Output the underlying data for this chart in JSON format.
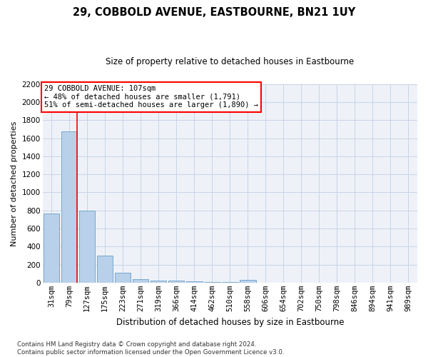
{
  "title": "29, COBBOLD AVENUE, EASTBOURNE, BN21 1UY",
  "subtitle": "Size of property relative to detached houses in Eastbourne",
  "xlabel": "Distribution of detached houses by size in Eastbourne",
  "ylabel": "Number of detached properties",
  "categories": [
    "31sqm",
    "79sqm",
    "127sqm",
    "175sqm",
    "223sqm",
    "271sqm",
    "319sqm",
    "366sqm",
    "414sqm",
    "462sqm",
    "510sqm",
    "558sqm",
    "606sqm",
    "654sqm",
    "702sqm",
    "750sqm",
    "798sqm",
    "846sqm",
    "894sqm",
    "941sqm",
    "989sqm"
  ],
  "values": [
    770,
    1680,
    800,
    300,
    110,
    38,
    25,
    20,
    15,
    10,
    10,
    30,
    0,
    0,
    0,
    0,
    0,
    0,
    0,
    0,
    0
  ],
  "bar_color": "#b8d0ea",
  "bar_edge_color": "#6a9fc8",
  "grid_color": "#c8d4e8",
  "vline_x_index": 1,
  "vline_color": "red",
  "annotation_line1": "29 COBBOLD AVENUE: 107sqm",
  "annotation_line2": "← 48% of detached houses are smaller (1,791)",
  "annotation_line3": "51% of semi-detached houses are larger (1,890) →",
  "annotation_box_color": "white",
  "annotation_box_edge_color": "red",
  "ylim": [
    0,
    2200
  ],
  "yticks": [
    0,
    200,
    400,
    600,
    800,
    1000,
    1200,
    1400,
    1600,
    1800,
    2000,
    2200
  ],
  "footnote": "Contains HM Land Registry data © Crown copyright and database right 2024.\nContains public sector information licensed under the Open Government Licence v3.0.",
  "bg_color": "#eef2f8",
  "fig_bg_color": "#ffffff",
  "title_fontsize": 10.5,
  "subtitle_fontsize": 8.5,
  "xlabel_fontsize": 8.5,
  "ylabel_fontsize": 8,
  "tick_fontsize": 7.5,
  "annot_fontsize": 7.5,
  "footnote_fontsize": 6.2
}
